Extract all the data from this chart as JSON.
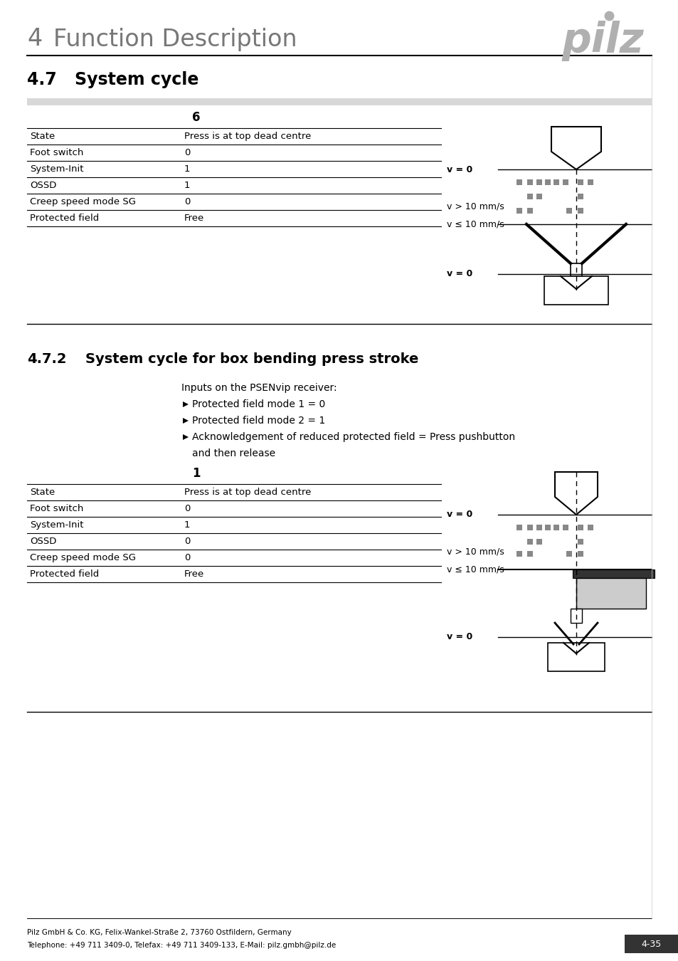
{
  "page_title_number": "4",
  "page_title_text": "Function Description",
  "section_47": "4.7",
  "section_47_title": "System cycle",
  "subsection_number": "4.7.2",
  "subsection_title": "System cycle for box bending press stroke",
  "inputs_header": "Inputs on the PSENvip receiver:",
  "bullet_points": [
    "Protected field mode 1 = 0",
    "Protected field mode 2 = 1",
    "Acknowledgement of reduced protected field = Press pushbutton\nand then release"
  ],
  "table1_number": "6",
  "table2_number": "1",
  "table_rows": [
    [
      "State",
      "Press is at top dead centre"
    ],
    [
      "Foot switch",
      "0"
    ],
    [
      "System-Init",
      "1"
    ],
    [
      "OSSD",
      "1"
    ],
    [
      "Creep speed mode SG",
      "0"
    ],
    [
      "Protected field",
      "Free"
    ]
  ],
  "table2_rows": [
    [
      "State",
      "Press is at top dead centre"
    ],
    [
      "Foot switch",
      "0"
    ],
    [
      "System-Init",
      "1"
    ],
    [
      "OSSD",
      "0"
    ],
    [
      "Creep speed mode SG",
      "0"
    ],
    [
      "Protected field",
      "Free"
    ]
  ],
  "footer_line1": "Pilz GmbH & Co. KG, Felix-Wankel-Straße 2, 73760 Ostfildern, Germany",
  "footer_line2": "Telephone: +49 711 3409-0, Telefax: +49 711 3409-133, E-Mail: pilz.gmbh@pilz.de",
  "page_number": "4-35",
  "bg_color": "#ffffff",
  "gray_bar_color": "#d8d8d8",
  "dot_color": "#888888",
  "dark_color": "#222222",
  "light_gray": "#cccccc"
}
